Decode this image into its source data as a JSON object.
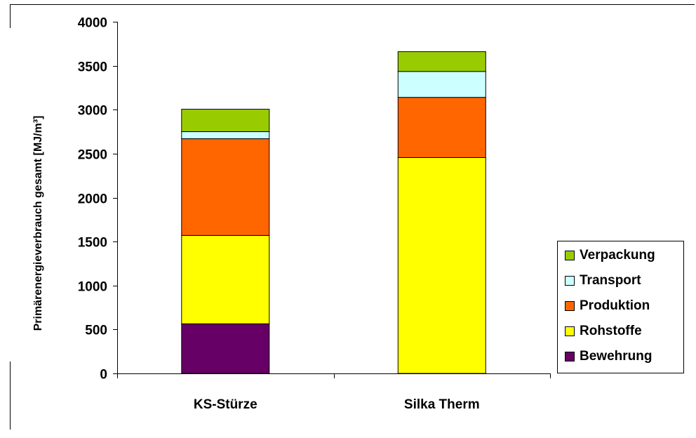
{
  "chart_data": {
    "type": "bar",
    "stacked": true,
    "categories": [
      "KS-Stürze",
      "Silka Therm"
    ],
    "series": [
      {
        "name": "Bewehrung",
        "color": "#660066",
        "values": [
          565,
          0
        ]
      },
      {
        "name": "Rohstoffe",
        "color": "#ffff00",
        "values": [
          1005,
          2455
        ]
      },
      {
        "name": "Produktion",
        "color": "#ff6600",
        "values": [
          1100,
          685
        ]
      },
      {
        "name": "Transport",
        "color": "#ccffff",
        "values": [
          80,
          295
        ]
      },
      {
        "name": "Verpackung",
        "color": "#99cc00",
        "values": [
          255,
          225
        ]
      }
    ],
    "ylabel": "Primärenergieverbrauch gesamt [MJ/m³]",
    "xlabel": "",
    "ylim": [
      0,
      4000
    ],
    "yticks": [
      "0",
      "500",
      "1000",
      "1500",
      "2000",
      "2500",
      "3000",
      "3500",
      "4000"
    ],
    "grid": false,
    "legend_position": "right"
  }
}
